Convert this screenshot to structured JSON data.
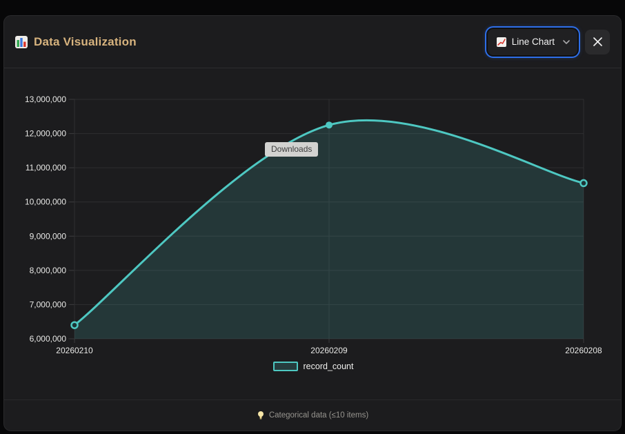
{
  "app": {
    "title": "Data Visualization",
    "title_icon": "bar-chart-emoji"
  },
  "header": {
    "chart_type": {
      "label": "Line Chart",
      "icon": "line-chart-emoji"
    },
    "close_icon": "x-close"
  },
  "chart_data": {
    "type": "line",
    "title": "",
    "categories": [
      "20260210",
      "20260209",
      "20260208"
    ],
    "series": [
      {
        "name": "record_count",
        "values": [
          6400000,
          12250000,
          10550000
        ]
      }
    ],
    "xlabel": "",
    "ylabel": "",
    "ylim": [
      6000000,
      13000000
    ],
    "ytick_step": 1000000,
    "ytick_labels": [
      "6,000,000",
      "7,000,000",
      "8,000,000",
      "9,000,000",
      "10,000,000",
      "11,000,000",
      "12,000,000",
      "13,000,000"
    ],
    "grid": true,
    "smooth": true,
    "legend_position": "bottom",
    "colors": {
      "line": "#4ec8c2",
      "point_fill_active": "#4ec8c2",
      "area_fill": "rgba(78,200,194,0.16)",
      "grid": "#2e2e30",
      "tick_label": "#e8e8e6"
    }
  },
  "tooltip": {
    "label": "Downloads"
  },
  "footer": {
    "icon": "lightbulb-emoji",
    "text": "Categorical data (≤10 items)"
  }
}
